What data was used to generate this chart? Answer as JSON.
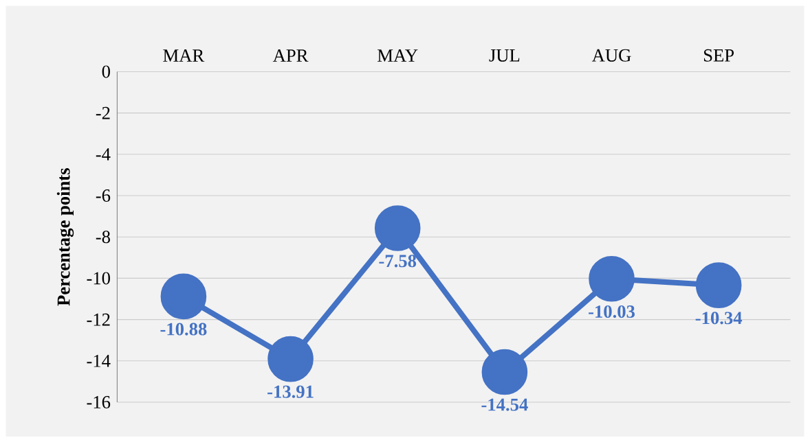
{
  "chart_data": {
    "type": "line",
    "ylabel": "Percentage points",
    "categories": [
      "MAR",
      "APR",
      "MAY",
      "JUL",
      "AUG",
      "SEP"
    ],
    "values": [
      -10.88,
      -13.91,
      -7.58,
      -14.54,
      -10.03,
      -10.34
    ],
    "color": "#4472c4",
    "marker": "circle",
    "line_style": "solid",
    "data_labels": true,
    "grid": "y",
    "ylim": [
      -16,
      0
    ],
    "yticks": [
      0,
      -2,
      -4,
      -6,
      -8,
      -10,
      -12,
      -14,
      -16
    ]
  }
}
